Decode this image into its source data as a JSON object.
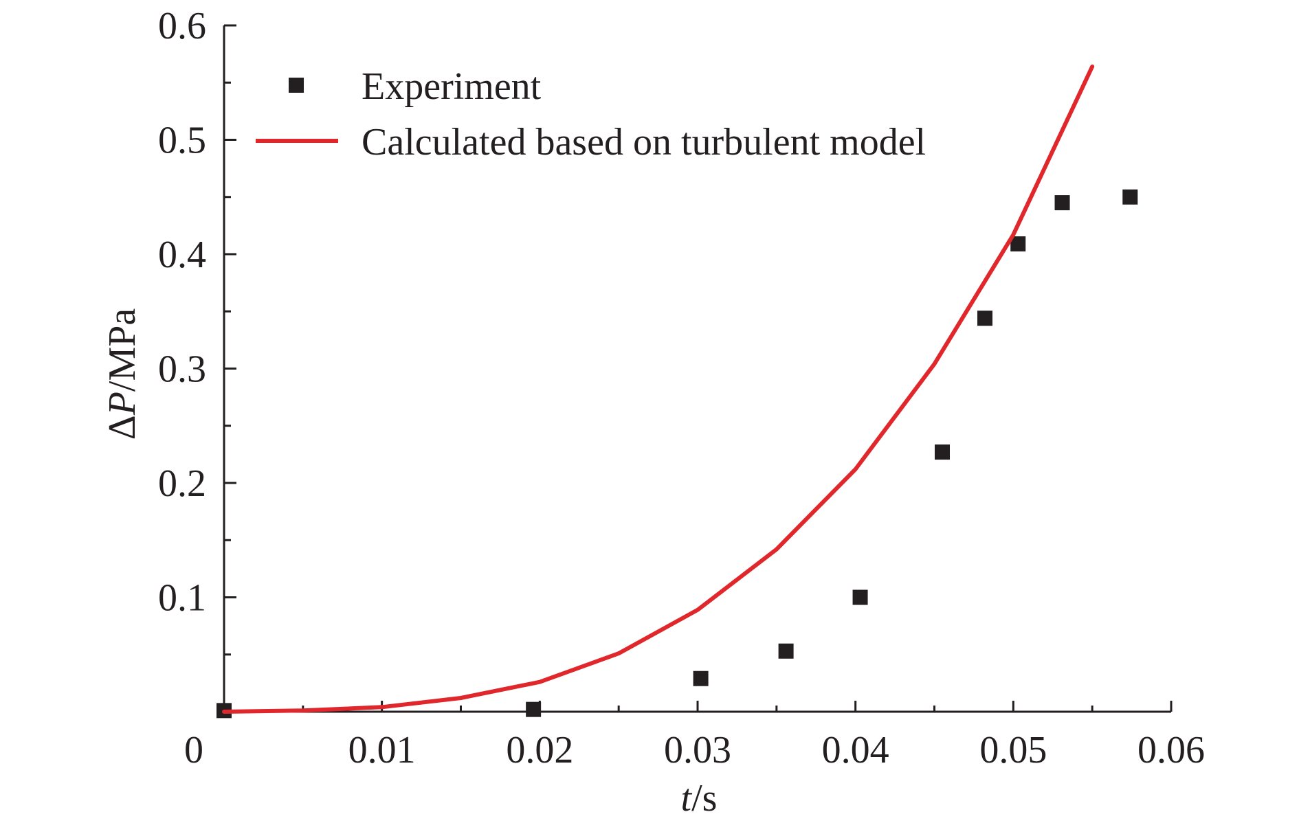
{
  "chart_data": {
    "type": "scatter",
    "xlabel": {
      "italic": "t",
      "rest": "/s"
    },
    "ylabel": {
      "prefix": "Δ",
      "italic": "P",
      "rest": "/MPa"
    },
    "xlim": [
      0,
      0.06
    ],
    "ylim": [
      0,
      0.6
    ],
    "x_ticks": [
      0,
      0.01,
      0.02,
      0.03,
      0.04,
      0.05,
      0.06
    ],
    "x_tick_labels": [
      "0",
      "0.01",
      "0.02",
      "0.03",
      "0.04",
      "0.05",
      "0.06"
    ],
    "y_ticks": [
      0.1,
      0.2,
      0.3,
      0.4,
      0.5,
      0.6
    ],
    "y_tick_labels": [
      "0.1",
      "0.2",
      "0.3",
      "0.4",
      "0.5",
      "0.6"
    ],
    "grid": false,
    "legend_position": "top-left",
    "series": [
      {
        "name": "Experiment",
        "kind": "scatter",
        "marker": "square",
        "color": "#231f20",
        "points": [
          [
            0.0,
            0.001
          ],
          [
            0.0196,
            0.002
          ],
          [
            0.0302,
            0.029
          ],
          [
            0.0356,
            0.053
          ],
          [
            0.0403,
            0.1
          ],
          [
            0.0455,
            0.227
          ],
          [
            0.0482,
            0.344
          ],
          [
            0.0503,
            0.409
          ],
          [
            0.0531,
            0.445
          ],
          [
            0.0574,
            0.45
          ]
        ]
      },
      {
        "name": "Calculated based on turbulent model",
        "kind": "line",
        "color": "#e0282c",
        "points": [
          [
            0.0,
            0.0
          ],
          [
            0.005,
            0.001
          ],
          [
            0.01,
            0.004
          ],
          [
            0.015,
            0.012
          ],
          [
            0.02,
            0.026
          ],
          [
            0.025,
            0.051
          ],
          [
            0.03,
            0.089
          ],
          [
            0.035,
            0.142
          ],
          [
            0.04,
            0.212
          ],
          [
            0.045,
            0.304
          ],
          [
            0.05,
            0.417
          ],
          [
            0.055,
            0.564
          ]
        ]
      }
    ]
  }
}
